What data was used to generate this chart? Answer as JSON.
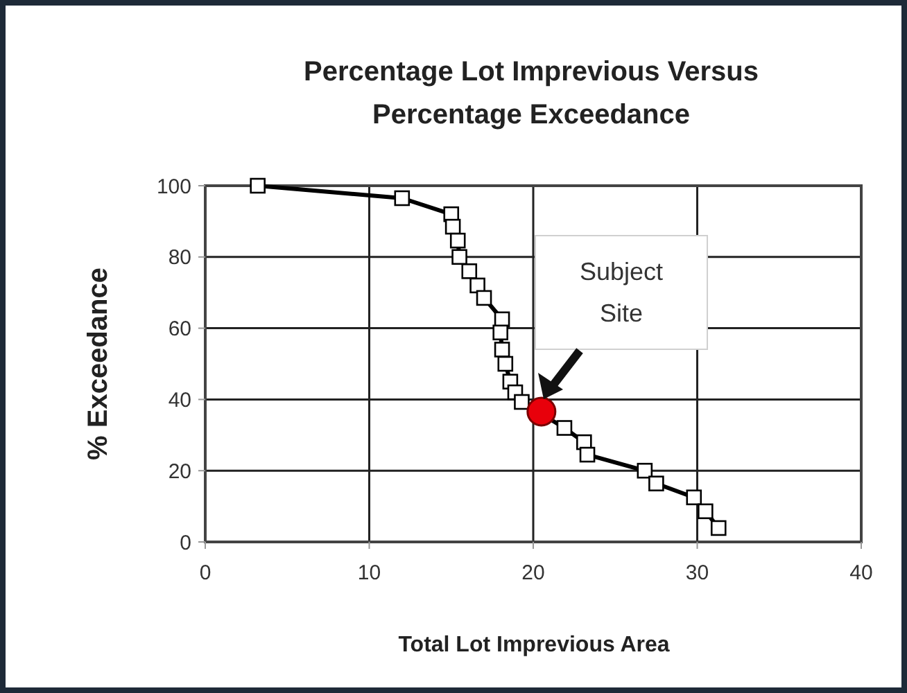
{
  "chart_data": {
    "type": "line",
    "title": "Percentage Lot Imprevious Versus Percentage Exceedance",
    "xlabel": "Total Lot Imprevious Area",
    "ylabel": "% Exceedance",
    "xlim": [
      0,
      40
    ],
    "xticks": [
      0,
      10,
      20,
      30,
      40
    ],
    "ylim": [
      0,
      100
    ],
    "yticks": [
      0,
      20,
      40,
      60,
      80,
      100
    ],
    "grid": true,
    "line_style": "solid",
    "series": [
      {
        "marker": "square",
        "color": "#000000",
        "x": [
          3.2,
          12.0,
          15.0,
          15.1,
          15.4,
          15.5,
          16.1,
          16.6,
          17.0,
          18.1,
          18.0,
          18.1,
          18.3,
          18.6,
          18.9,
          19.3,
          21.9,
          23.1,
          23.3,
          26.8,
          27.5,
          29.8,
          30.5,
          31.3
        ],
        "values": [
          100,
          96.5,
          92,
          88.5,
          84.6,
          80,
          76,
          72,
          68.5,
          62.5,
          58.8,
          54,
          50,
          45,
          42,
          39.3,
          32,
          28,
          24.5,
          20,
          16.4,
          12.5,
          8.6,
          3.9
        ]
      },
      {
        "type": "scatter",
        "marker": "circle",
        "color": "#e8000b",
        "x": [
          20.5
        ],
        "values": [
          36.6
        ]
      }
    ],
    "annotations": [
      "Subject Site"
    ]
  }
}
